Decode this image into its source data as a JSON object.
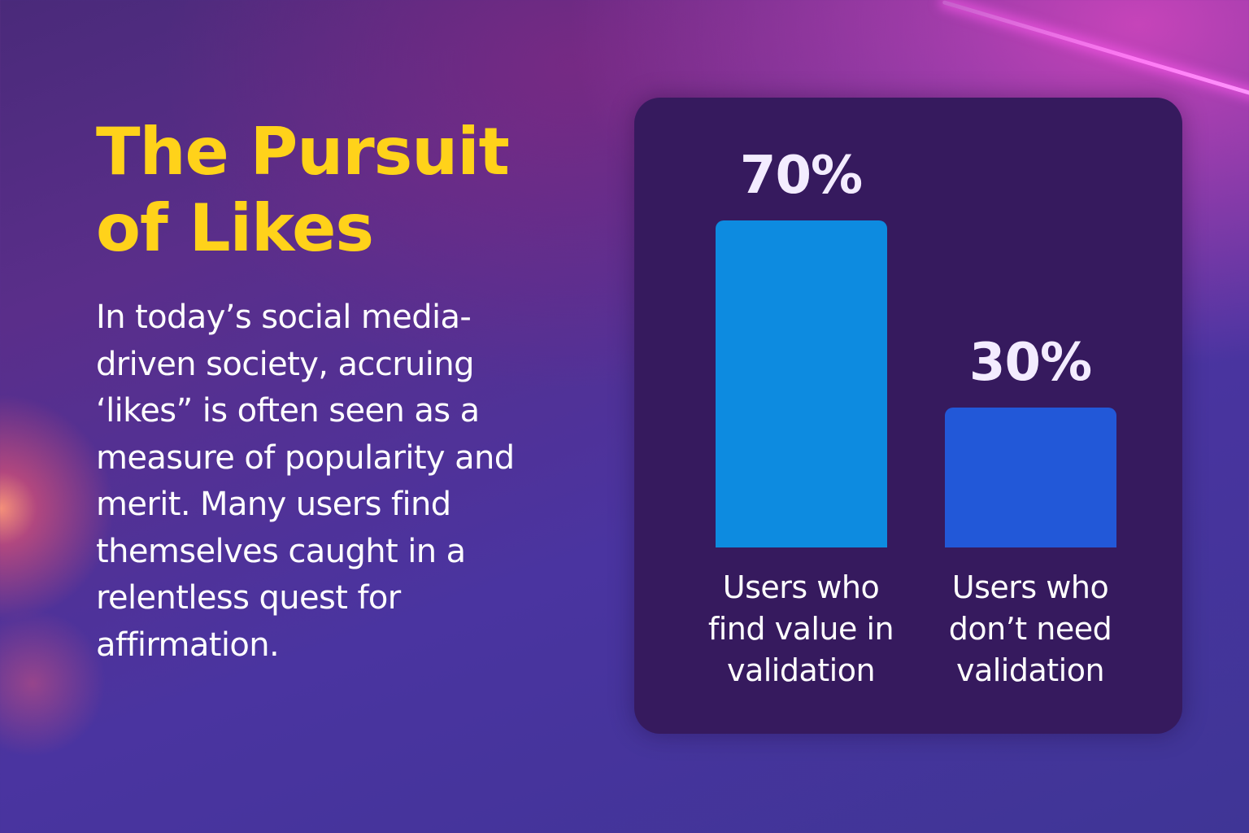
{
  "headline": "The Pursuit of Likes",
  "body": "In today’s social media-driven society, accruing ‘likes” is often seen as a measure of popularity and merit. Many users find themselves caught in a relentless quest for affirmation.",
  "colors": {
    "title": "#ffd21a",
    "bar_1": "#0d8be0",
    "bar_2": "#2258d8",
    "panel": "#361a5e"
  },
  "chart_data": {
    "type": "bar",
    "categories": [
      "Users who find value in validation",
      "Users who don’t need validation"
    ],
    "values": [
      70,
      30
    ],
    "value_labels": [
      "70%",
      "30%"
    ],
    "unit": "%",
    "ylim": [
      0,
      70
    ],
    "grid": false,
    "legend": "none"
  }
}
